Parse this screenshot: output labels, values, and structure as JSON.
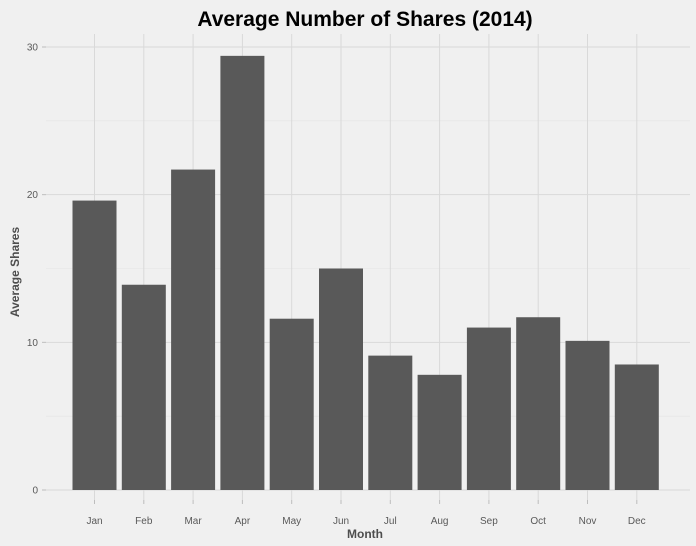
{
  "chart_data": {
    "type": "bar",
    "title": "Average Number of Shares (2014)",
    "xlabel": "Month",
    "ylabel": "Average Shares",
    "categories": [
      "Jan",
      "Feb",
      "Mar",
      "Apr",
      "May",
      "Jun",
      "Jul",
      "Aug",
      "Sep",
      "Oct",
      "Nov",
      "Dec"
    ],
    "values": [
      19.6,
      13.9,
      21.7,
      29.4,
      11.6,
      15.0,
      9.1,
      7.8,
      11.0,
      11.7,
      10.1,
      8.5
    ],
    "ylim": [
      0,
      30
    ],
    "yticks": [
      0,
      10,
      20,
      30
    ],
    "grid": true,
    "bar_color": "#595959",
    "background_color": "#f0f0f0"
  }
}
